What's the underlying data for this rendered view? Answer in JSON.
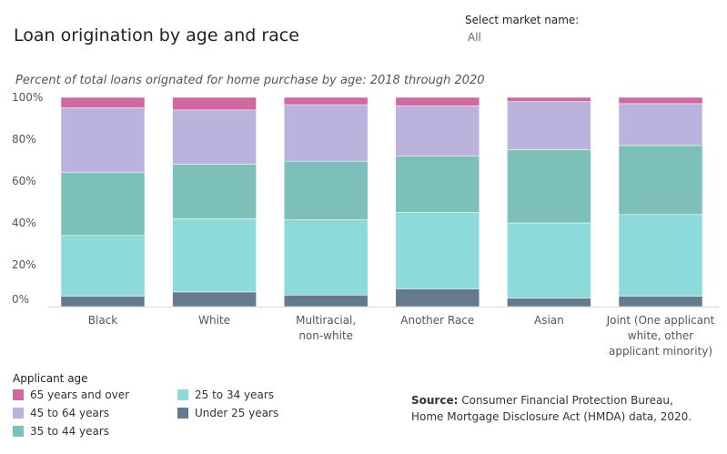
{
  "header": {
    "title": "Loan origination by age and race",
    "subtitle": "Percent of total loans orignated for home purchase by age: 2018 through 2020"
  },
  "filter": {
    "label": "Select market name:",
    "value": "All"
  },
  "legend": {
    "title": "Applicant age",
    "items": [
      {
        "label": "65 years and over",
        "color": "#d1689f"
      },
      {
        "label": "45 to 64 years",
        "color": "#bbb3de"
      },
      {
        "label": "35 to 44 years",
        "color": "#7dbfb9"
      },
      {
        "label": "25 to 34 years",
        "color": "#8ddadb"
      },
      {
        "label": "Under 25 years",
        "color": "#667a8e"
      }
    ]
  },
  "source": {
    "label": "Source:",
    "text": "Consumer Financial Protection Bureau, Home Mortgage Disclosure Act (HMDA) data, 2020."
  },
  "chart_data": {
    "type": "bar",
    "stacked": true,
    "categories": [
      [
        "Black"
      ],
      [
        "White"
      ],
      [
        "Multiracial,",
        "non-white"
      ],
      [
        "Another Race"
      ],
      [
        "Asian"
      ],
      [
        "Joint (One applicant",
        "white, other",
        "applicant minority)"
      ]
    ],
    "ylim": [
      0,
      100
    ],
    "yticks": [
      0,
      20,
      40,
      60,
      80,
      100
    ],
    "ytick_labels": [
      "0%",
      "20%",
      "40%",
      "60%",
      "80%",
      "100%"
    ],
    "series": [
      {
        "name": "Under 25 years",
        "color": "#667a8e",
        "values": [
          5,
          7,
          5.5,
          8.5,
          4,
          5
        ]
      },
      {
        "name": "25 to 34 years",
        "color": "#8ddadb",
        "values": [
          29,
          35,
          36,
          36.5,
          36,
          39
        ]
      },
      {
        "name": "35 to 44 years",
        "color": "#7dbfb9",
        "values": [
          30,
          26,
          28,
          27,
          35,
          33
        ]
      },
      {
        "name": "45 to 64 years",
        "color": "#bbb3de",
        "values": [
          31,
          26,
          27,
          24,
          23,
          20
        ]
      },
      {
        "name": "65 years and over",
        "color": "#d1689f",
        "values": [
          5,
          6,
          3.5,
          4,
          2,
          3
        ]
      }
    ]
  }
}
